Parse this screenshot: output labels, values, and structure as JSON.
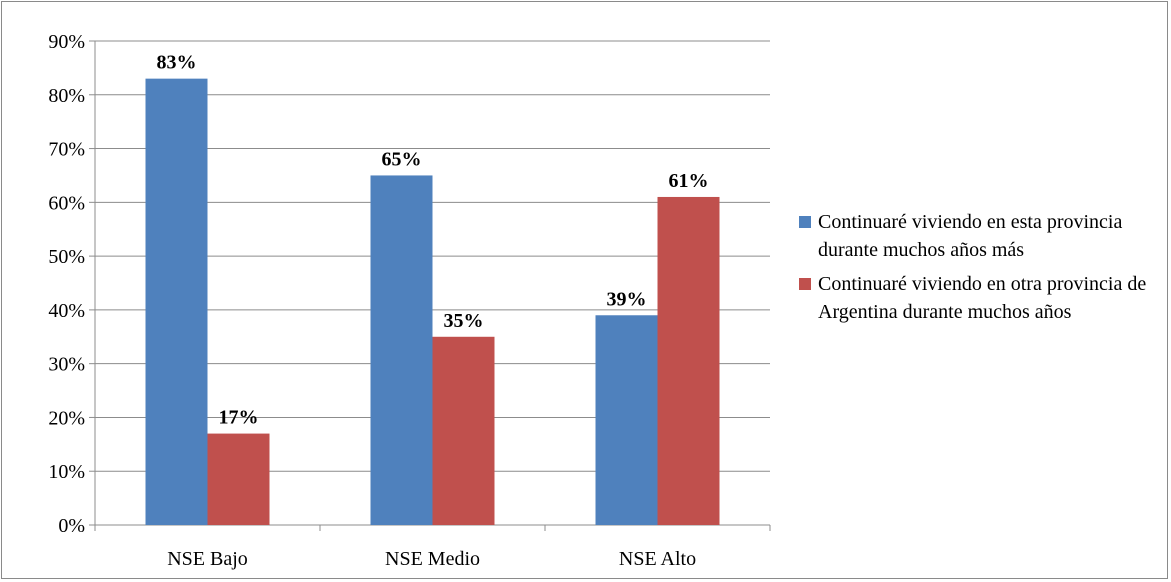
{
  "chart_data": {
    "type": "bar",
    "categories": [
      "NSE Bajo",
      "NSE Medio",
      "NSE Alto"
    ],
    "series": [
      {
        "name": "Continuaré viviendo en esta provincia durante muchos años más",
        "values": [
          83,
          65,
          39
        ],
        "labels": [
          "83%",
          "65%",
          "39%"
        ],
        "color": "#4f81bd"
      },
      {
        "name": "Continuaré viviendo en otra provincia de Argentina durante muchos años",
        "values": [
          17,
          35,
          61
        ],
        "labels": [
          "17%",
          "35%",
          "61%"
        ],
        "color": "#c0504d"
      }
    ],
    "y_ticks": [
      "0%",
      "10%",
      "20%",
      "30%",
      "40%",
      "50%",
      "60%",
      "70%",
      "80%",
      "90%"
    ],
    "ylim": [
      0,
      90
    ],
    "grid": true,
    "legend_position": "right",
    "title": "",
    "xlabel": "",
    "ylabel": ""
  }
}
